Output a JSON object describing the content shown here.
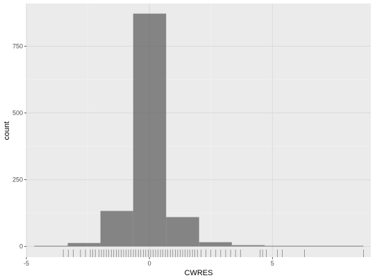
{
  "chart_data": {
    "type": "bar",
    "subtype": "histogram",
    "title": "",
    "xlabel": "CWRES",
    "ylabel": "count",
    "xlim": [
      -5,
      9
    ],
    "ylim": [
      -40,
      910
    ],
    "x_ticks": [
      -5,
      0,
      5
    ],
    "x_tick_labels": [
      "-5",
      "0",
      "5"
    ],
    "y_ticks": [
      0,
      250,
      500,
      750
    ],
    "y_tick_labels": [
      "0",
      "250",
      "500",
      "750"
    ],
    "grid": true,
    "legend": "none",
    "bins": [
      {
        "x0": -4.68,
        "x1": -3.32,
        "count": 1
      },
      {
        "x0": -3.32,
        "x1": -1.99,
        "count": 13
      },
      {
        "x0": -1.99,
        "x1": -0.66,
        "count": 133
      },
      {
        "x0": -0.66,
        "x1": 0.68,
        "count": 872
      },
      {
        "x0": 0.68,
        "x1": 2.02,
        "count": 110
      },
      {
        "x0": 2.02,
        "x1": 3.35,
        "count": 16
      },
      {
        "x0": 3.35,
        "x1": 4.69,
        "count": 5
      },
      {
        "x0": 4.69,
        "x1": 6.03,
        "count": 2
      },
      {
        "x0": 6.03,
        "x1": 7.36,
        "count": 0
      },
      {
        "x0": 7.36,
        "x1": 8.7,
        "count": 1
      }
    ],
    "rug_values": [
      -3.5,
      -3.3,
      -3.1,
      -2.8,
      -2.6,
      -2.4,
      -2.3,
      -2.2,
      -2.05,
      -1.95,
      -1.85,
      -1.75,
      -1.65,
      -1.55,
      -1.45,
      -1.35,
      -1.25,
      -1.15,
      -1.05,
      -0.95,
      -0.85,
      -0.75,
      -0.65,
      -0.55,
      -0.45,
      -0.35,
      -0.25,
      -0.15,
      -0.05,
      0.05,
      0.15,
      0.25,
      0.35,
      0.45,
      0.55,
      0.65,
      0.75,
      0.85,
      0.95,
      1.05,
      1.15,
      1.25,
      1.35,
      1.45,
      1.55,
      1.65,
      1.75,
      1.85,
      1.95,
      2.1,
      2.3,
      2.5,
      2.7,
      2.9,
      3.1,
      3.3,
      3.5,
      3.7,
      4.5,
      4.6,
      4.75,
      5.2,
      5.4,
      6.3,
      8.7
    ],
    "colors": {
      "panel_background": "#ebebeb",
      "grid_major": "#dadada",
      "grid_minor": "#f3f3f3",
      "bar_fill": "#595959",
      "bar_opacity": 0.7,
      "rug": "#333333"
    }
  }
}
